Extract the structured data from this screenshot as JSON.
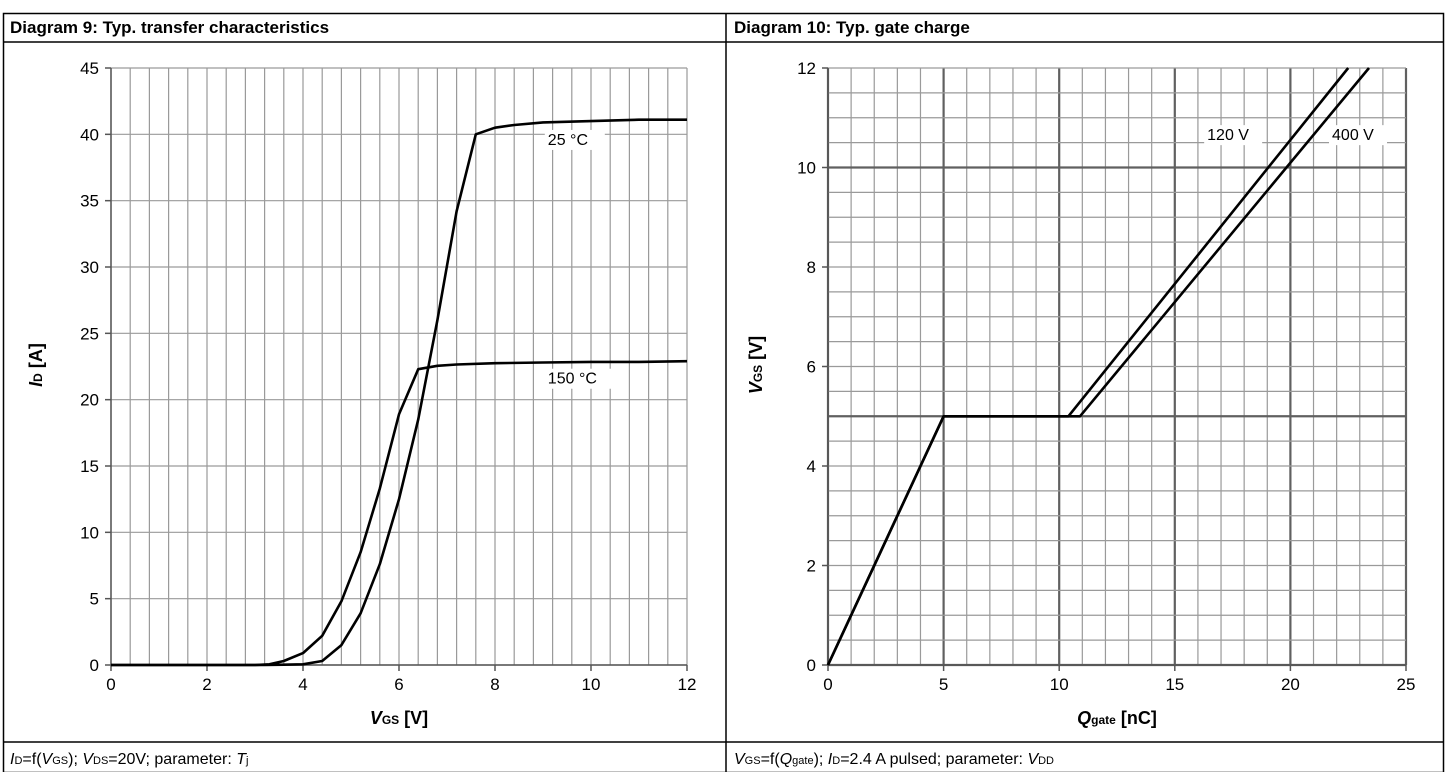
{
  "panels": [
    {
      "title": "Diagram 9: Typ. transfer characteristics",
      "footer": {
        "a_main": "I",
        "a_sub": "D",
        "b": "=f(",
        "c_main": "V",
        "c_sub": "GS",
        "d": "); ",
        "e_main": "V",
        "e_sub": "DS",
        "f": "=20V; parameter: ",
        "g_main": "T",
        "g_sub": "j"
      },
      "xlabel": {
        "main": "V",
        "sub": "GS",
        "unit": " [V]"
      },
      "ylabel": {
        "main": "I",
        "sub": "D",
        "unit": " [A]"
      }
    },
    {
      "title": "Diagram 10: Typ. gate charge",
      "footer": {
        "a_main": "V",
        "a_sub": "GS",
        "b": "=f(",
        "c_main": "Q",
        "c_sub": "gate",
        "d": "); ",
        "e_main": "I",
        "e_sub": "D",
        "f": "=2.4 A pulsed; parameter: ",
        "g_main": "V",
        "g_sub": "DD"
      },
      "xlabel": {
        "main": "Q",
        "sub": "gate",
        "unit": " [nC]"
      },
      "ylabel": {
        "main": "V",
        "sub": "GS",
        "unit": " [V]"
      }
    }
  ],
  "chart_data": [
    {
      "type": "line",
      "title": "Diagram 9: Typ. transfer characteristics",
      "xlabel": "VGS [V]",
      "ylabel": "ID [A]",
      "xlim": [
        0,
        12
      ],
      "ylim": [
        0,
        45
      ],
      "x_ticks": [
        0,
        2,
        4,
        6,
        8,
        10,
        12
      ],
      "y_ticks": [
        0,
        5,
        10,
        15,
        20,
        25,
        30,
        35,
        40,
        45
      ],
      "grid": "vertical minor every 0.4 V, horizontal every 5 A",
      "line_color": "#000000",
      "series": [
        {
          "name": "25 °C",
          "points": [
            [
              0,
              0
            ],
            [
              3.2,
              0
            ],
            [
              3.6,
              0.02
            ],
            [
              4.0,
              0.05
            ],
            [
              4.4,
              0.3
            ],
            [
              4.8,
              1.5
            ],
            [
              5.2,
              3.9
            ],
            [
              5.6,
              7.6
            ],
            [
              6.0,
              12.5
            ],
            [
              6.4,
              18.5
            ],
            [
              6.8,
              26
            ],
            [
              7.2,
              34.2
            ],
            [
              7.6,
              40
            ],
            [
              8.0,
              40.5
            ],
            [
              8.4,
              40.7
            ],
            [
              9,
              40.9
            ],
            [
              10,
              41
            ],
            [
              11,
              41.1
            ],
            [
              12,
              41.1
            ]
          ]
        },
        {
          "name": "150 °C",
          "points": [
            [
              0,
              0
            ],
            [
              3.0,
              0
            ],
            [
              3.3,
              0.05
            ],
            [
              3.6,
              0.3
            ],
            [
              4.0,
              0.9
            ],
            [
              4.4,
              2.2
            ],
            [
              4.8,
              4.8
            ],
            [
              5.2,
              8.5
            ],
            [
              5.6,
              13.3
            ],
            [
              6.0,
              18.9
            ],
            [
              6.4,
              22.3
            ],
            [
              6.8,
              22.55
            ],
            [
              7.2,
              22.65
            ],
            [
              8,
              22.75
            ],
            [
              9,
              22.8
            ],
            [
              10,
              22.85
            ],
            [
              11,
              22.85
            ],
            [
              12,
              22.9
            ]
          ]
        }
      ]
    },
    {
      "type": "line",
      "title": "Diagram 10: Typ. gate charge",
      "xlabel": "Qgate [nC]",
      "ylabel": "VGS [V]",
      "xlim": [
        0,
        25
      ],
      "ylim": [
        0,
        12
      ],
      "x_ticks": [
        0,
        5,
        10,
        15,
        20,
        25
      ],
      "y_ticks": [
        0,
        2,
        4,
        6,
        8,
        10,
        12
      ],
      "grid": "minor every 1 nC and 0.5 V, major every 5 nC and 5 V",
      "line_color": "#000000",
      "series": [
        {
          "name": "120 V",
          "points": [
            [
              0,
              0
            ],
            [
              5,
              5
            ],
            [
              10.4,
              5
            ],
            [
              22.5,
              12
            ]
          ]
        },
        {
          "name": "400 V",
          "points": [
            [
              0,
              0
            ],
            [
              5,
              5
            ],
            [
              10.9,
              5
            ],
            [
              23.4,
              12
            ]
          ]
        }
      ]
    }
  ]
}
